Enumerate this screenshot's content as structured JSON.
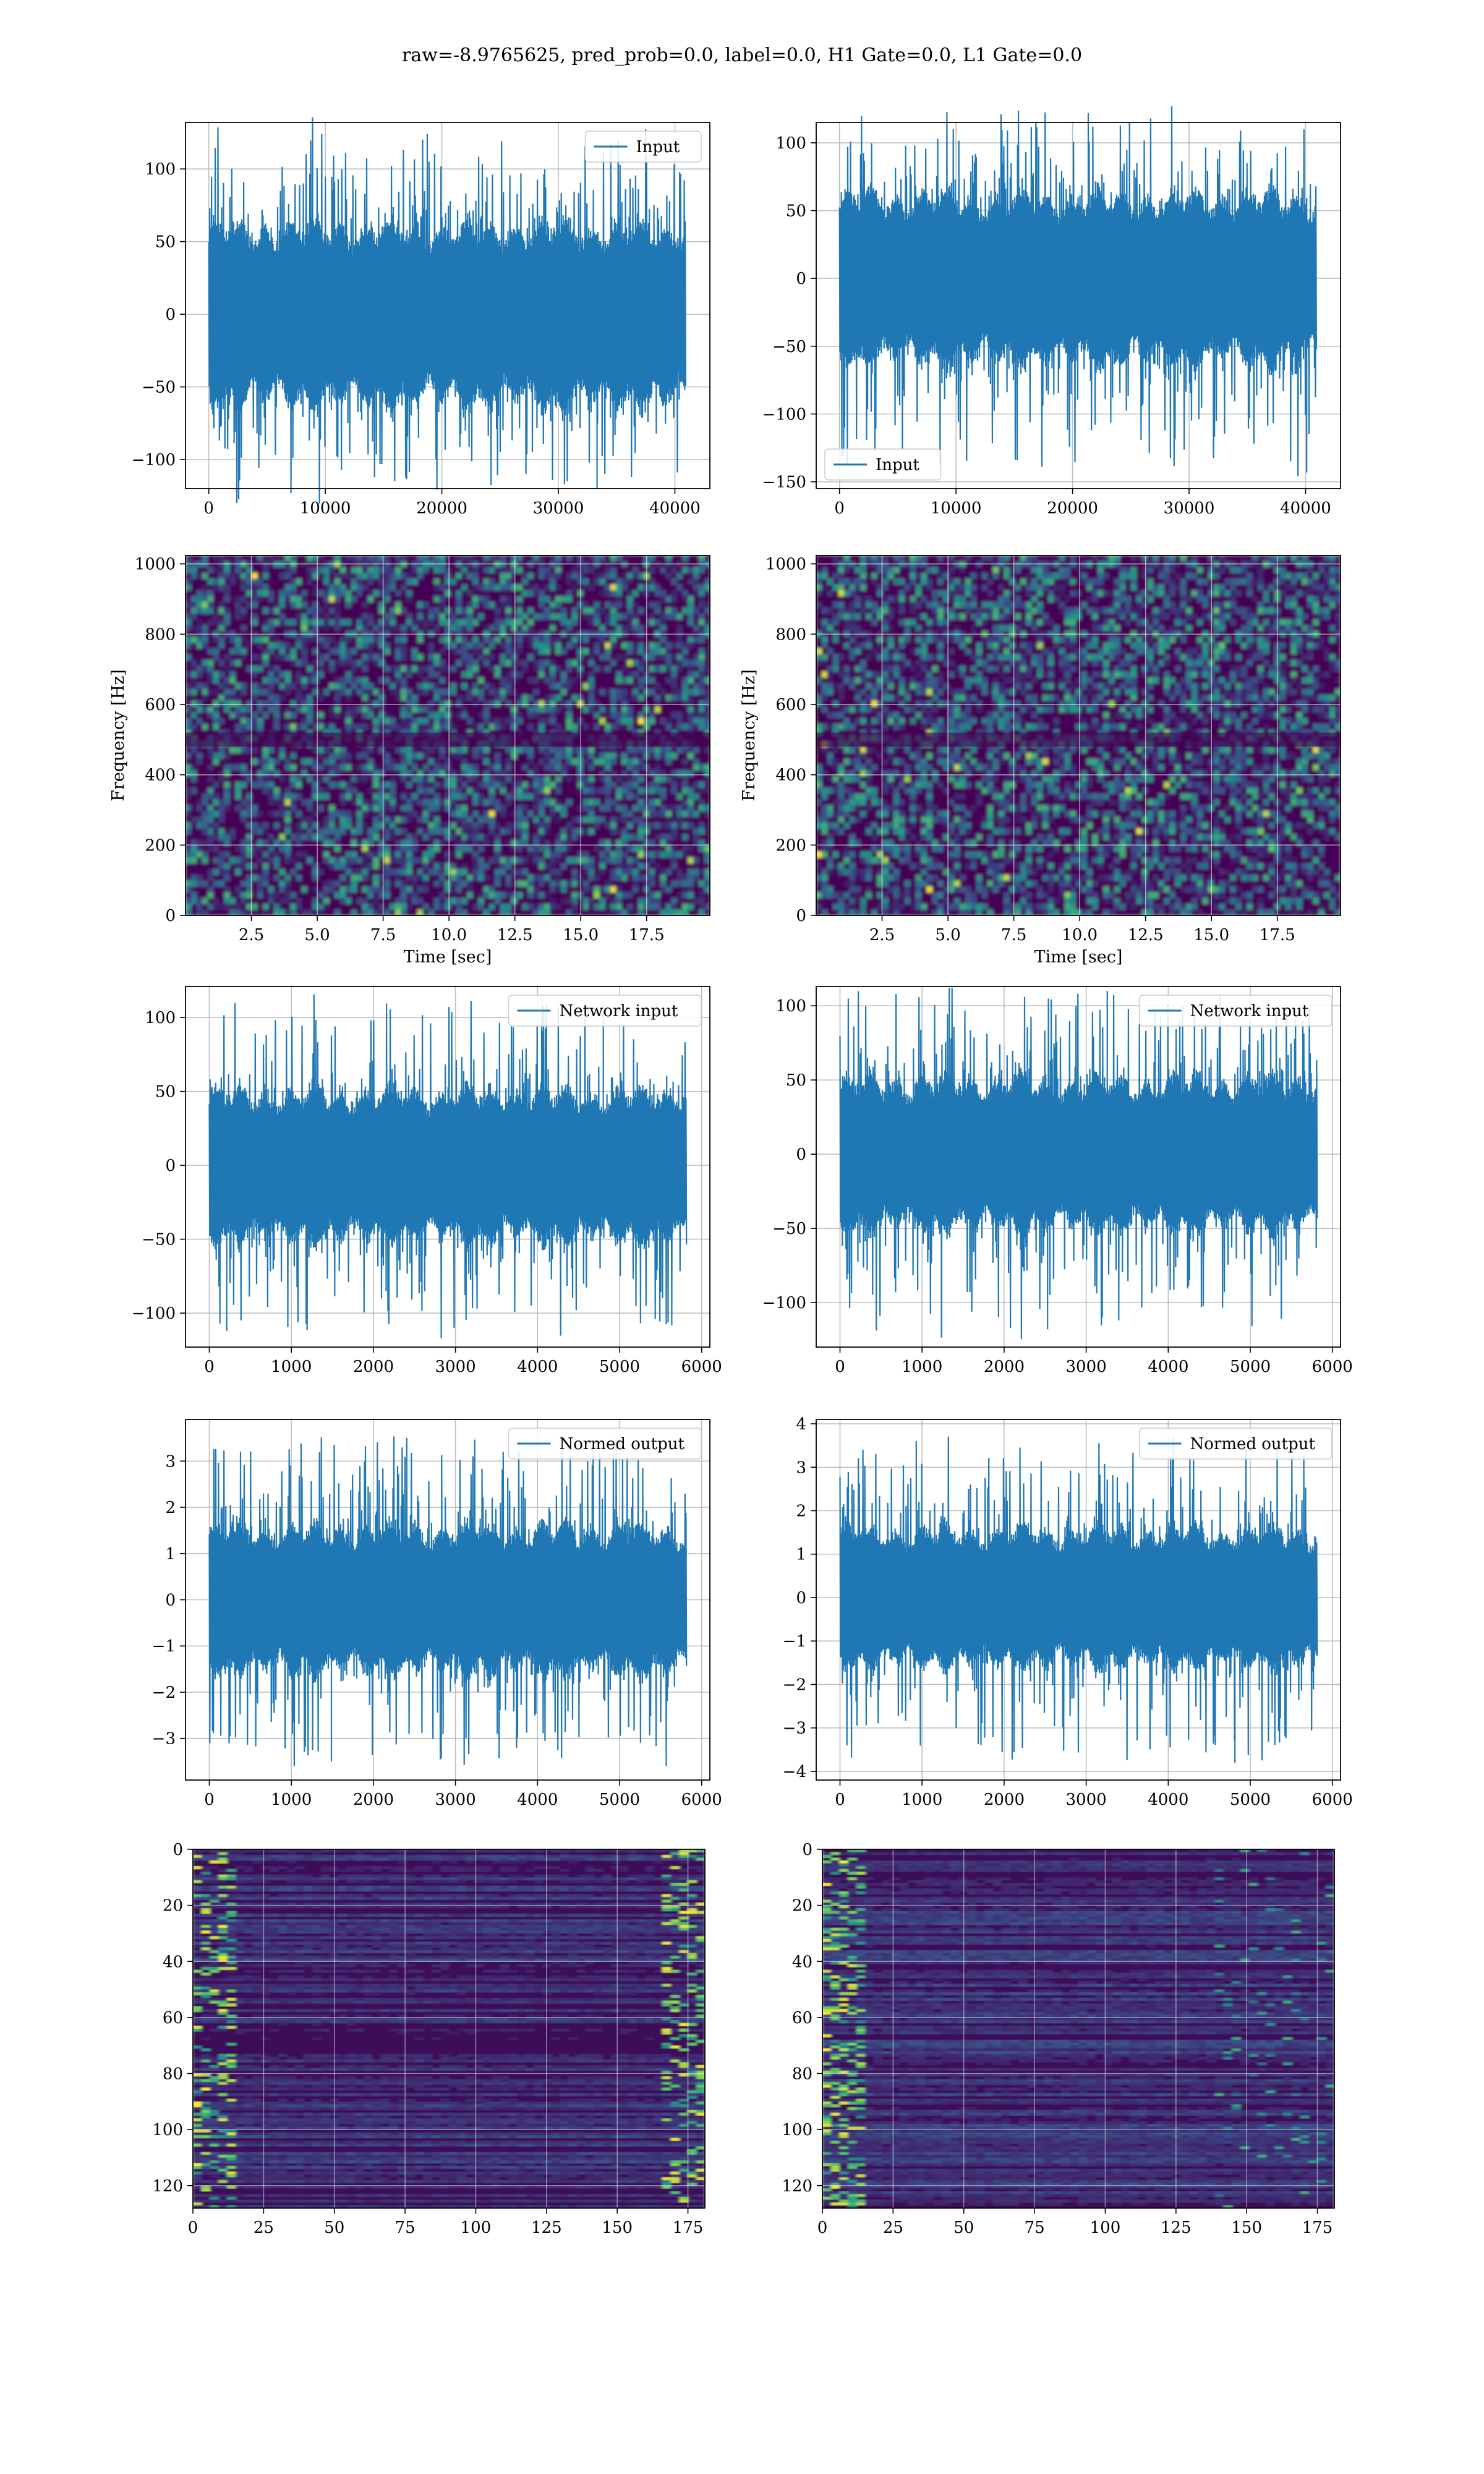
{
  "suptitle": "raw=-8.9765625, pred_prob=0.0, label=0.0, H1 Gate=0.0, L1 Gate=0.0",
  "colors": {
    "line": "#1f77b4",
    "grid": "#b0b0b0",
    "heat_low": "#440154",
    "heat_mid": "#21918c",
    "heat_high": "#fde725"
  },
  "chart_data": [
    {
      "type": "line",
      "panel": "row1-left",
      "series": [
        {
          "name": "Input"
        }
      ],
      "legend": "upper right",
      "grid": true,
      "xlim": [
        -2000,
        43000
      ],
      "ylim": [
        -120,
        132
      ],
      "xticks": [
        "0",
        "10000",
        "20000",
        "30000",
        "40000"
      ],
      "yticks": [
        "100",
        "50",
        "0",
        "−50",
        "−100"
      ],
      "signal": {
        "n": 40960,
        "amplitude_core": 55,
        "peak_max": 124,
        "peak_min": -120
      }
    },
    {
      "type": "line",
      "panel": "row1-right",
      "series": [
        {
          "name": "Input"
        }
      ],
      "legend": "lower left",
      "grid": true,
      "xlim": [
        -2000,
        43000
      ],
      "ylim": [
        -155,
        115
      ],
      "xticks": [
        "0",
        "10000",
        "20000",
        "30000",
        "40000"
      ],
      "yticks": [
        "100",
        "50",
        "0",
        "−50",
        "−100",
        "−150"
      ],
      "signal": {
        "n": 40960,
        "amplitude_core": 55,
        "peak_max": 122,
        "peak_min": -143
      }
    },
    {
      "type": "heatmap",
      "panel": "row2-left",
      "xlabel": "Time [sec]",
      "ylabel": "Frequency [Hz]",
      "grid": true,
      "xlim": [
        0,
        19.9
      ],
      "ylim": [
        0,
        1024
      ],
      "xticks": [
        "2.5",
        "5.0",
        "7.5",
        "10.0",
        "12.5",
        "15.0",
        "17.5"
      ],
      "yticks": [
        "0",
        "200",
        "400",
        "600",
        "800",
        "1000"
      ]
    },
    {
      "type": "heatmap",
      "panel": "row2-right",
      "xlabel": "Time [sec]",
      "ylabel": "Frequency [Hz]",
      "grid": true,
      "xlim": [
        0,
        19.9
      ],
      "ylim": [
        0,
        1024
      ],
      "xticks": [
        "2.5",
        "5.0",
        "7.5",
        "10.0",
        "12.5",
        "15.0",
        "17.5"
      ],
      "yticks": [
        "0",
        "200",
        "400",
        "600",
        "800",
        "1000"
      ]
    },
    {
      "type": "line",
      "panel": "row3-left",
      "series": [
        {
          "name": "Network input"
        }
      ],
      "legend": "upper right",
      "grid": true,
      "xlim": [
        -290,
        6100
      ],
      "ylim": [
        -123,
        121
      ],
      "xticks": [
        "0",
        "1000",
        "2000",
        "3000",
        "4000",
        "5000",
        "6000"
      ],
      "yticks": [
        "100",
        "50",
        "0",
        "−50",
        "−100"
      ],
      "signal": {
        "n": 5820,
        "amplitude_core": 45,
        "peak_max": 110,
        "peak_min": -112
      }
    },
    {
      "type": "line",
      "panel": "row3-right",
      "series": [
        {
          "name": "Network input"
        }
      ],
      "legend": "upper right",
      "grid": true,
      "xlim": [
        -290,
        6100
      ],
      "ylim": [
        -130,
        113
      ],
      "xticks": [
        "0",
        "1000",
        "2000",
        "3000",
        "4000",
        "5000",
        "6000"
      ],
      "yticks": [
        "100",
        "50",
        "0",
        "−50",
        "−100"
      ],
      "signal": {
        "n": 5820,
        "amplitude_core": 45,
        "peak_max": 110,
        "peak_min": -118
      }
    },
    {
      "type": "line",
      "panel": "row4-left",
      "series": [
        {
          "name": "Normed output"
        }
      ],
      "legend": "upper right",
      "grid": true,
      "xlim": [
        -290,
        6100
      ],
      "ylim": [
        -3.9,
        3.9
      ],
      "xticks": [
        "0",
        "1000",
        "2000",
        "3000",
        "4000",
        "5000",
        "6000"
      ],
      "yticks": [
        "3",
        "2",
        "1",
        "0",
        "−1",
        "−2",
        "−3"
      ],
      "signal": {
        "n": 5820,
        "amplitude_core": 1.4,
        "peak_max": 3.5,
        "peak_min": -3.5
      }
    },
    {
      "type": "line",
      "panel": "row4-right",
      "series": [
        {
          "name": "Normed output"
        }
      ],
      "legend": "upper right",
      "grid": true,
      "xlim": [
        -290,
        6100
      ],
      "ylim": [
        -4.2,
        4.1
      ],
      "xticks": [
        "0",
        "1000",
        "2000",
        "3000",
        "4000",
        "5000",
        "6000"
      ],
      "yticks": [
        "4",
        "3",
        "2",
        "1",
        "0",
        "−1",
        "−2",
        "−3",
        "−4"
      ],
      "signal": {
        "n": 5820,
        "amplitude_core": 1.4,
        "peak_max": 3.6,
        "peak_min": -3.8
      }
    },
    {
      "type": "heatmap",
      "panel": "row5-left",
      "grid": true,
      "xlim": [
        0,
        181
      ],
      "ylim": [
        128,
        0
      ],
      "xticks": [
        "0",
        "25",
        "50",
        "75",
        "100",
        "125",
        "150",
        "175"
      ],
      "yticks": [
        "0",
        "20",
        "40",
        "60",
        "80",
        "100",
        "120"
      ]
    },
    {
      "type": "heatmap",
      "panel": "row5-right",
      "grid": true,
      "xlim": [
        0,
        181
      ],
      "ylim": [
        128,
        0
      ],
      "xticks": [
        "0",
        "25",
        "50",
        "75",
        "100",
        "125",
        "150",
        "175"
      ],
      "yticks": [
        "0",
        "20",
        "40",
        "60",
        "80",
        "100",
        "120"
      ]
    }
  ]
}
